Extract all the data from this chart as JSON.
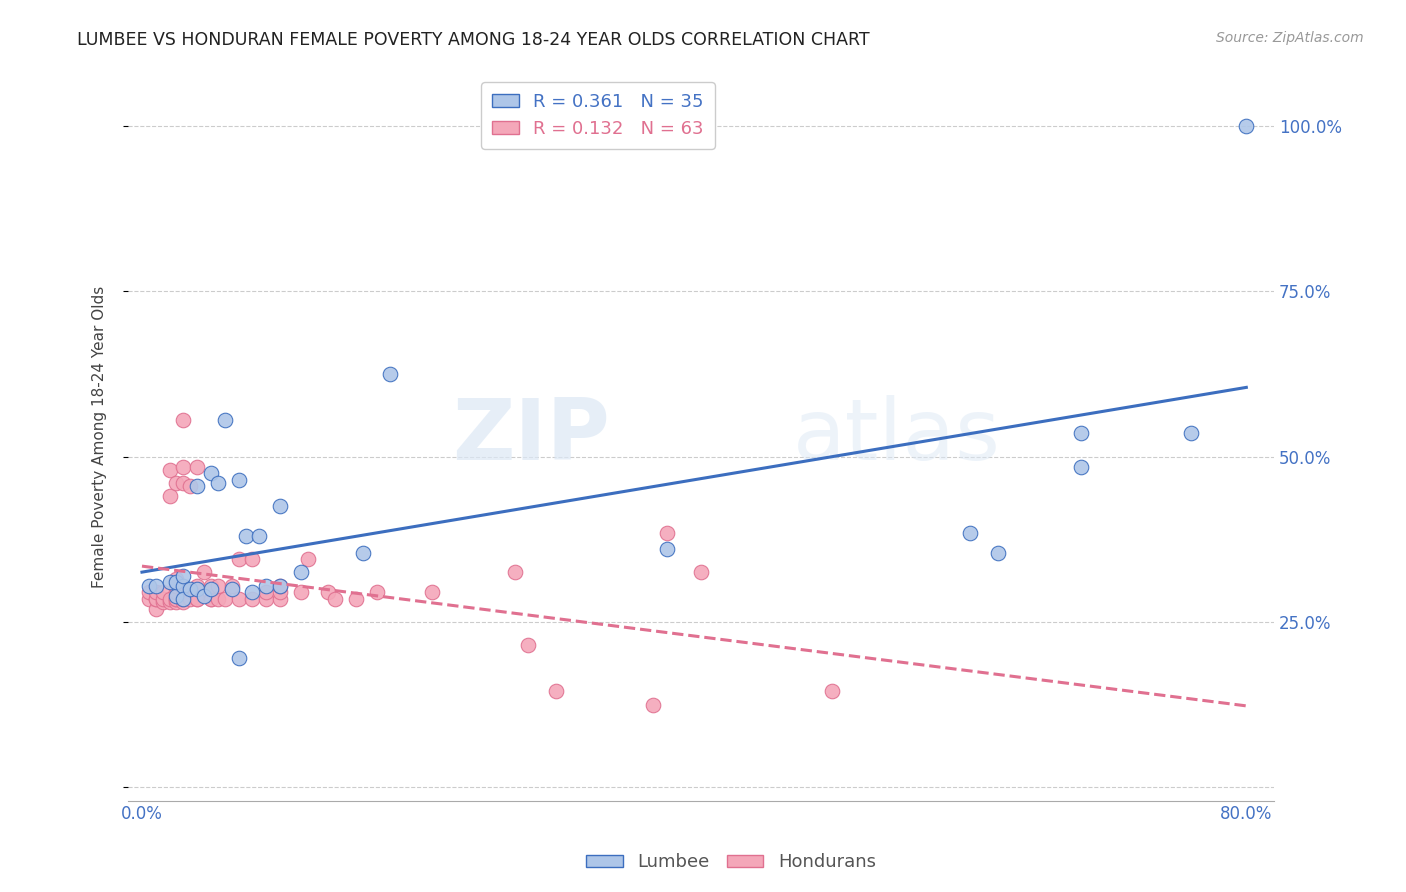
{
  "title": "LUMBEE VS HONDURAN FEMALE POVERTY AMONG 18-24 YEAR OLDS CORRELATION CHART",
  "source": "Source: ZipAtlas.com",
  "ylabel": "Female Poverty Among 18-24 Year Olds",
  "xlim": [
    -0.01,
    0.82
  ],
  "ylim": [
    -0.02,
    1.08
  ],
  "yticks": [
    0.0,
    0.25,
    0.5,
    0.75,
    1.0
  ],
  "ytick_labels": [
    "",
    "25.0%",
    "50.0%",
    "75.0%",
    "100.0%"
  ],
  "xticks": [
    0.0,
    0.16,
    0.32,
    0.48,
    0.64,
    0.8
  ],
  "xtick_labels": [
    "0.0%",
    "",
    "",
    "",
    "",
    "80.0%"
  ],
  "lumbee_color": "#aec6e8",
  "honduran_color": "#f4a7b9",
  "lumbee_line_color": "#3c6ebf",
  "honduran_line_color": "#e07090",
  "lumbee_R": 0.361,
  "lumbee_N": 35,
  "honduran_R": 0.132,
  "honduran_N": 63,
  "watermark_zip": "ZIP",
  "watermark_atlas": "atlas",
  "lumbee_x": [
    0.005,
    0.01,
    0.02,
    0.025,
    0.025,
    0.03,
    0.03,
    0.03,
    0.035,
    0.04,
    0.04,
    0.045,
    0.05,
    0.05,
    0.055,
    0.06,
    0.065,
    0.07,
    0.07,
    0.075,
    0.08,
    0.085,
    0.09,
    0.1,
    0.1,
    0.115,
    0.16,
    0.18,
    0.38,
    0.6,
    0.62,
    0.68,
    0.68,
    0.76,
    0.8
  ],
  "lumbee_y": [
    0.305,
    0.305,
    0.31,
    0.29,
    0.31,
    0.305,
    0.285,
    0.32,
    0.3,
    0.455,
    0.3,
    0.29,
    0.475,
    0.3,
    0.46,
    0.555,
    0.3,
    0.465,
    0.195,
    0.38,
    0.295,
    0.38,
    0.305,
    0.425,
    0.305,
    0.325,
    0.355,
    0.625,
    0.36,
    0.385,
    0.355,
    0.535,
    0.485,
    0.535,
    1.0
  ],
  "honduran_x": [
    0.005,
    0.005,
    0.01,
    0.01,
    0.01,
    0.01,
    0.015,
    0.015,
    0.015,
    0.02,
    0.02,
    0.02,
    0.02,
    0.025,
    0.025,
    0.025,
    0.025,
    0.025,
    0.025,
    0.025,
    0.03,
    0.03,
    0.03,
    0.03,
    0.03,
    0.03,
    0.035,
    0.035,
    0.04,
    0.04,
    0.04,
    0.04,
    0.045,
    0.05,
    0.05,
    0.05,
    0.055,
    0.055,
    0.06,
    0.065,
    0.07,
    0.07,
    0.08,
    0.08,
    0.09,
    0.09,
    0.1,
    0.1,
    0.1,
    0.115,
    0.12,
    0.135,
    0.14,
    0.155,
    0.17,
    0.21,
    0.27,
    0.28,
    0.3,
    0.37,
    0.38,
    0.405,
    0.5
  ],
  "honduran_y": [
    0.285,
    0.295,
    0.27,
    0.285,
    0.285,
    0.295,
    0.28,
    0.285,
    0.295,
    0.28,
    0.285,
    0.44,
    0.48,
    0.28,
    0.285,
    0.285,
    0.295,
    0.305,
    0.315,
    0.46,
    0.28,
    0.285,
    0.3,
    0.46,
    0.485,
    0.555,
    0.285,
    0.455,
    0.285,
    0.285,
    0.305,
    0.485,
    0.325,
    0.285,
    0.285,
    0.305,
    0.285,
    0.305,
    0.285,
    0.305,
    0.285,
    0.345,
    0.285,
    0.345,
    0.285,
    0.295,
    0.285,
    0.295,
    0.305,
    0.295,
    0.345,
    0.295,
    0.285,
    0.285,
    0.295,
    0.295,
    0.325,
    0.215,
    0.145,
    0.125,
    0.385,
    0.325,
    0.145
  ]
}
